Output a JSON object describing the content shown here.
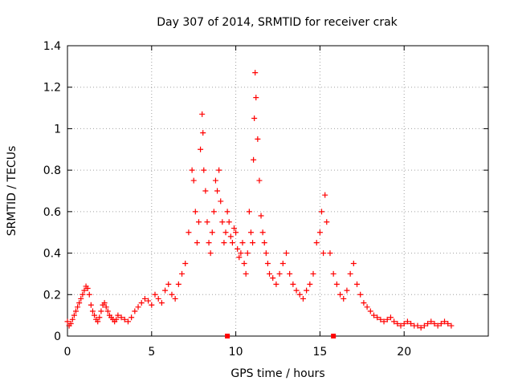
{
  "chart_data": {
    "type": "scatter",
    "title": "Day 307 of 2014, SRMTID for receiver crak",
    "xlabel": "GPS time / hours",
    "ylabel": "SRMTID / TECUs",
    "xlim": [
      0,
      25
    ],
    "ylim": [
      0,
      1.4
    ],
    "xticks": [
      0,
      5,
      10,
      15,
      20
    ],
    "xtick_labels": [
      "0",
      "5",
      "10",
      "15",
      "20"
    ],
    "yticks": [
      0,
      0.2,
      0.4,
      0.6,
      0.8,
      1,
      1.2,
      1.4
    ],
    "ytick_labels": [
      "0",
      "0.2",
      "0.4",
      "0.6",
      "0.8",
      "1",
      "1.2",
      "1.4"
    ],
    "grid": true,
    "marker": "+",
    "color": "#ff0000",
    "series": [
      {
        "name": "SRMTID",
        "x": [
          0.0,
          0.1,
          0.2,
          0.3,
          0.4,
          0.5,
          0.6,
          0.7,
          0.8,
          0.9,
          1.0,
          1.1,
          1.2,
          1.3,
          1.4,
          1.5,
          1.6,
          1.7,
          1.8,
          1.9,
          2.0,
          2.1,
          2.2,
          2.3,
          2.4,
          2.5,
          2.6,
          2.7,
          2.8,
          2.9,
          3.0,
          3.2,
          3.4,
          3.6,
          3.8,
          4.0,
          4.2,
          4.4,
          4.6,
          4.8,
          5.0,
          5.2,
          5.4,
          5.6,
          5.8,
          6.0,
          6.2,
          6.4,
          6.6,
          6.8,
          7.0,
          7.2,
          7.4,
          7.5,
          7.6,
          7.7,
          7.8,
          7.9,
          8.0,
          8.05,
          8.1,
          8.2,
          8.3,
          8.4,
          8.5,
          8.6,
          8.7,
          8.8,
          8.9,
          9.0,
          9.1,
          9.2,
          9.3,
          9.4,
          9.5,
          9.6,
          9.7,
          9.8,
          9.9,
          10.0,
          10.1,
          10.2,
          10.3,
          10.4,
          10.5,
          10.6,
          10.7,
          10.8,
          10.9,
          11.0,
          11.05,
          11.1,
          11.15,
          11.2,
          11.3,
          11.4,
          11.5,
          11.6,
          11.7,
          11.8,
          11.9,
          12.0,
          12.2,
          12.4,
          12.6,
          12.8,
          13.0,
          13.2,
          13.4,
          13.6,
          13.8,
          14.0,
          14.2,
          14.4,
          14.6,
          14.8,
          15.0,
          15.1,
          15.2,
          15.3,
          15.4,
          15.6,
          15.8,
          16.0,
          16.2,
          16.4,
          16.6,
          16.8,
          17.0,
          17.2,
          17.4,
          17.6,
          17.8,
          18.0,
          18.2,
          18.4,
          18.6,
          18.8,
          19.0,
          19.2,
          19.4,
          19.6,
          19.8,
          20.0,
          20.2,
          20.4,
          20.6,
          20.8,
          21.0,
          21.2,
          21.4,
          21.6,
          21.8,
          22.0,
          22.2,
          22.4,
          22.6,
          22.8
        ],
        "y": [
          0.07,
          0.05,
          0.06,
          0.08,
          0.1,
          0.12,
          0.14,
          0.16,
          0.18,
          0.2,
          0.22,
          0.24,
          0.23,
          0.2,
          0.15,
          0.12,
          0.1,
          0.08,
          0.07,
          0.09,
          0.12,
          0.15,
          0.16,
          0.14,
          0.12,
          0.1,
          0.09,
          0.08,
          0.07,
          0.08,
          0.1,
          0.09,
          0.08,
          0.07,
          0.09,
          0.12,
          0.14,
          0.16,
          0.18,
          0.17,
          0.15,
          0.2,
          0.18,
          0.16,
          0.22,
          0.25,
          0.2,
          0.18,
          0.25,
          0.3,
          0.35,
          0.5,
          0.8,
          0.75,
          0.6,
          0.45,
          0.55,
          0.9,
          1.07,
          0.98,
          0.8,
          0.7,
          0.55,
          0.45,
          0.4,
          0.5,
          0.6,
          0.75,
          0.7,
          0.8,
          0.65,
          0.55,
          0.45,
          0.5,
          0.6,
          0.55,
          0.48,
          0.45,
          0.52,
          0.5,
          0.42,
          0.38,
          0.4,
          0.45,
          0.35,
          0.3,
          0.4,
          0.6,
          0.5,
          0.45,
          0.85,
          1.05,
          1.27,
          1.15,
          0.95,
          0.75,
          0.58,
          0.5,
          0.45,
          0.4,
          0.35,
          0.3,
          0.28,
          0.25,
          0.3,
          0.35,
          0.4,
          0.3,
          0.25,
          0.22,
          0.2,
          0.18,
          0.22,
          0.25,
          0.3,
          0.45,
          0.5,
          0.6,
          0.4,
          0.68,
          0.55,
          0.4,
          0.3,
          0.25,
          0.2,
          0.18,
          0.22,
          0.3,
          0.35,
          0.25,
          0.2,
          0.16,
          0.14,
          0.12,
          0.1,
          0.09,
          0.08,
          0.07,
          0.08,
          0.09,
          0.07,
          0.06,
          0.05,
          0.06,
          0.07,
          0.06,
          0.05,
          0.05,
          0.04,
          0.05,
          0.06,
          0.07,
          0.06,
          0.05,
          0.06,
          0.07,
          0.06,
          0.05
        ]
      }
    ],
    "markers_on_axis": [
      {
        "x": 9.5,
        "y": 0
      },
      {
        "x": 15.8,
        "y": 0
      }
    ]
  }
}
